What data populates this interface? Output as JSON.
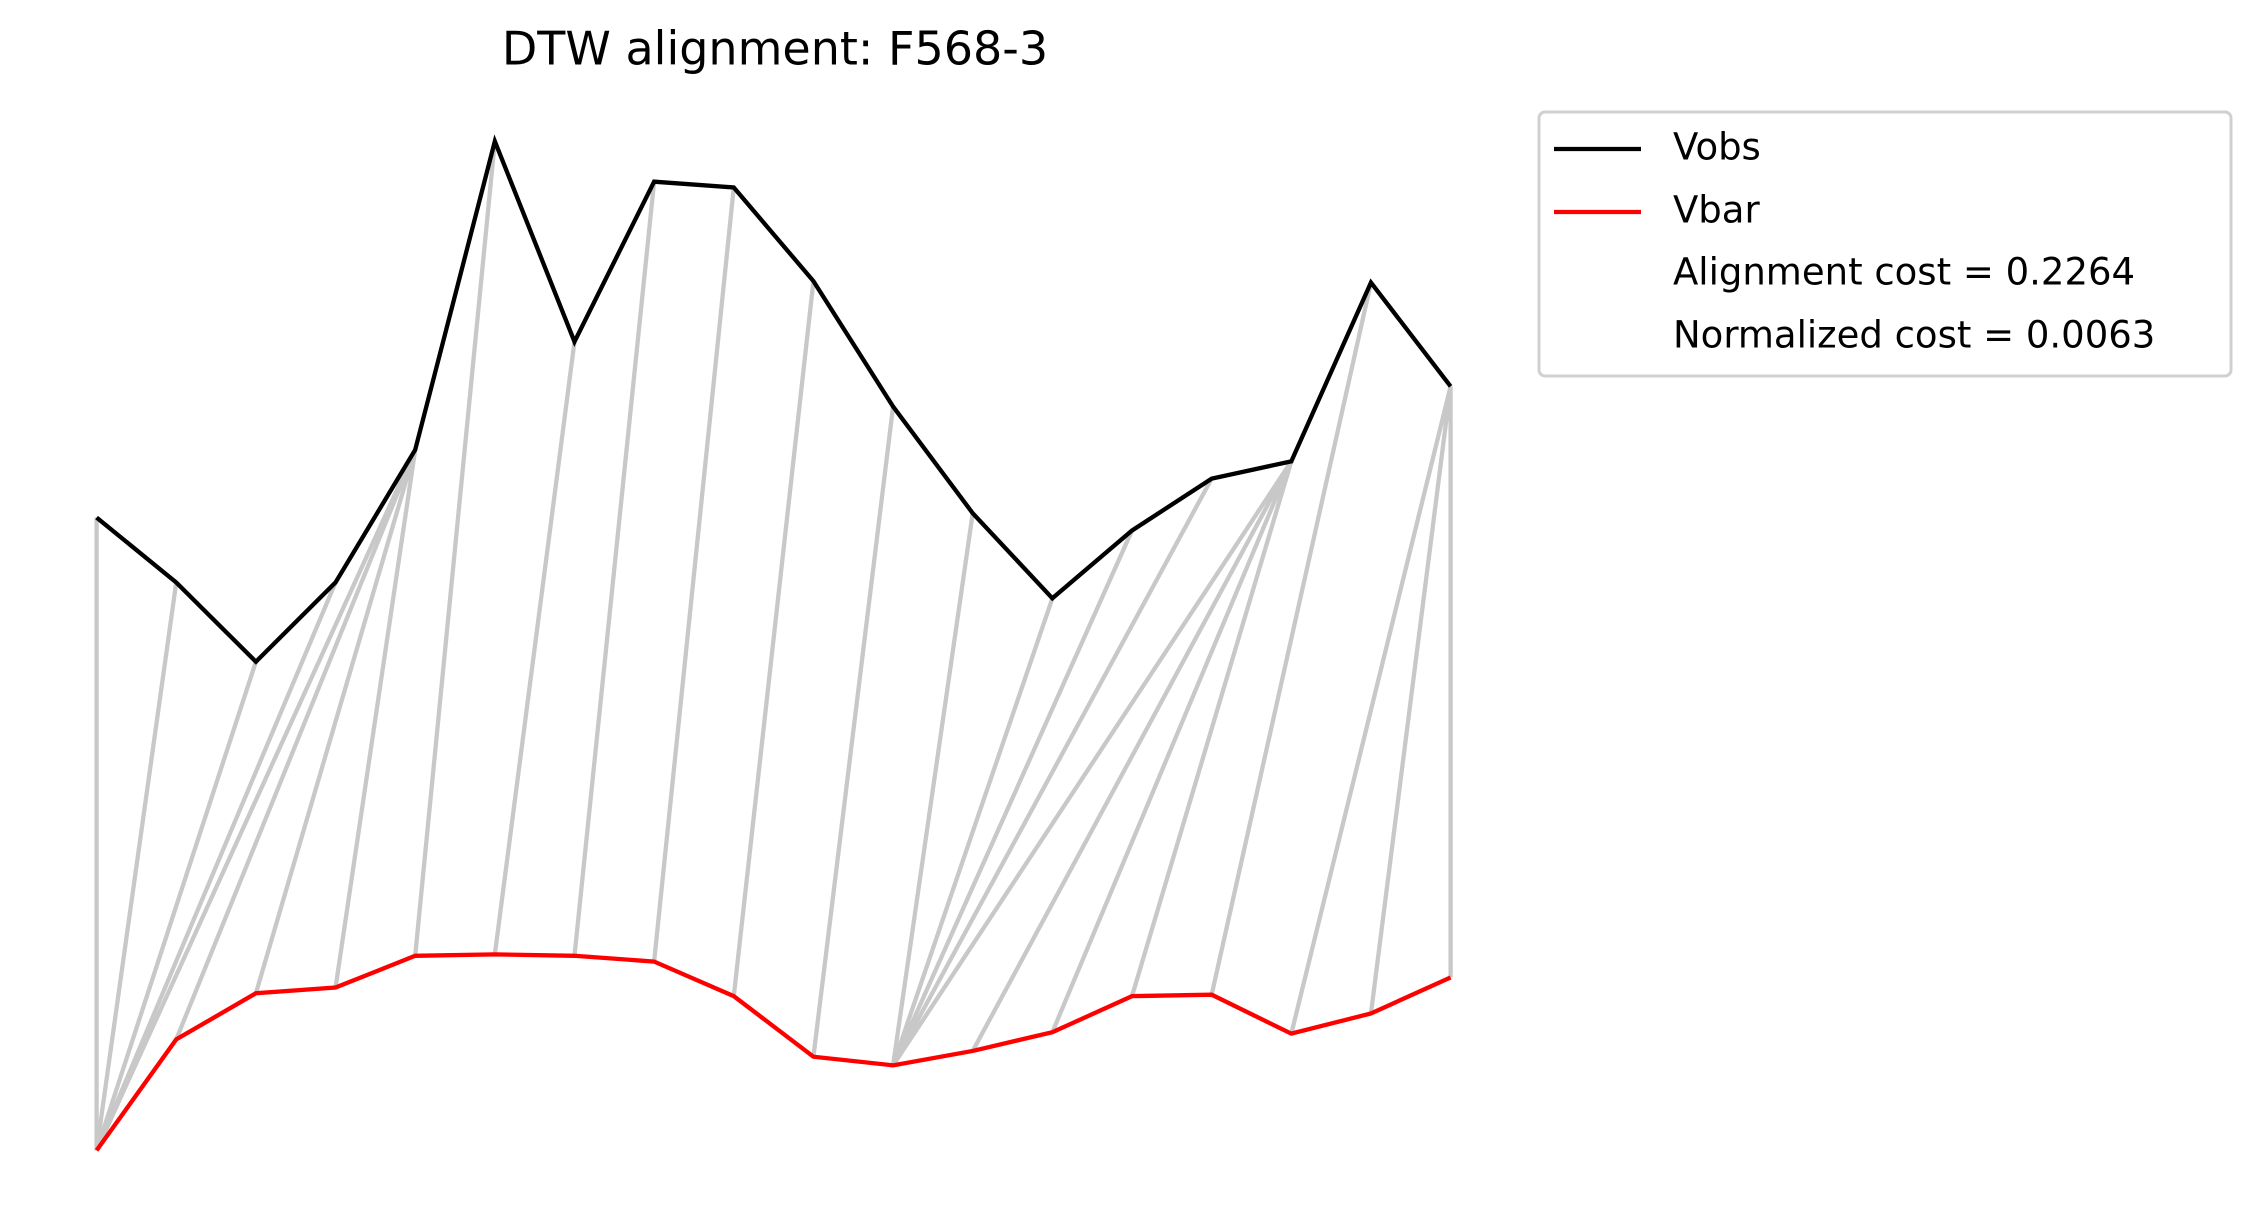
{
  "chart_data": {
    "type": "dtw",
    "title": "DTW alignment: F568-3",
    "x": [
      0,
      1,
      2,
      3,
      4,
      5,
      6,
      7,
      8,
      9,
      10,
      11,
      12,
      13,
      14,
      15,
      16,
      17
    ],
    "xlim": [
      0,
      17
    ],
    "ylim": [
      -0.22,
      7.24
    ],
    "series": [
      {
        "name": "Vobs",
        "color": "#000000",
        "values": [
          4.41,
          3.96,
          3.41,
          3.96,
          4.88,
          7.02,
          5.63,
          6.74,
          6.7,
          6.05,
          5.18,
          4.44,
          3.85,
          4.32,
          4.68,
          4.8,
          6.04,
          5.32
        ]
      },
      {
        "name": "Vbar",
        "color": "#ff0000",
        "values": [
          0.02,
          0.79,
          1.11,
          1.15,
          1.37,
          1.38,
          1.37,
          1.33,
          1.09,
          0.67,
          0.61,
          0.71,
          0.84,
          1.09,
          1.1,
          0.83,
          0.97,
          1.22
        ]
      }
    ],
    "alignment_color": "#c8c8c8",
    "alignment": [
      [
        0,
        0
      ],
      [
        1,
        0
      ],
      [
        2,
        0
      ],
      [
        3,
        0
      ],
      [
        4,
        0
      ],
      [
        4,
        1
      ],
      [
        4,
        2
      ],
      [
        4,
        3
      ],
      [
        5,
        4
      ],
      [
        6,
        5
      ],
      [
        7,
        6
      ],
      [
        8,
        7
      ],
      [
        9,
        8
      ],
      [
        10,
        9
      ],
      [
        11,
        10
      ],
      [
        12,
        10
      ],
      [
        13,
        10
      ],
      [
        14,
        10
      ],
      [
        15,
        10
      ],
      [
        15,
        11
      ],
      [
        15,
        12
      ],
      [
        15,
        13
      ],
      [
        16,
        14
      ],
      [
        17,
        15
      ],
      [
        17,
        16
      ],
      [
        17,
        17
      ]
    ],
    "annotations": [
      "Alignment cost = 0.2264",
      "Normalized cost = 0.0063"
    ],
    "legend": "outside right"
  }
}
